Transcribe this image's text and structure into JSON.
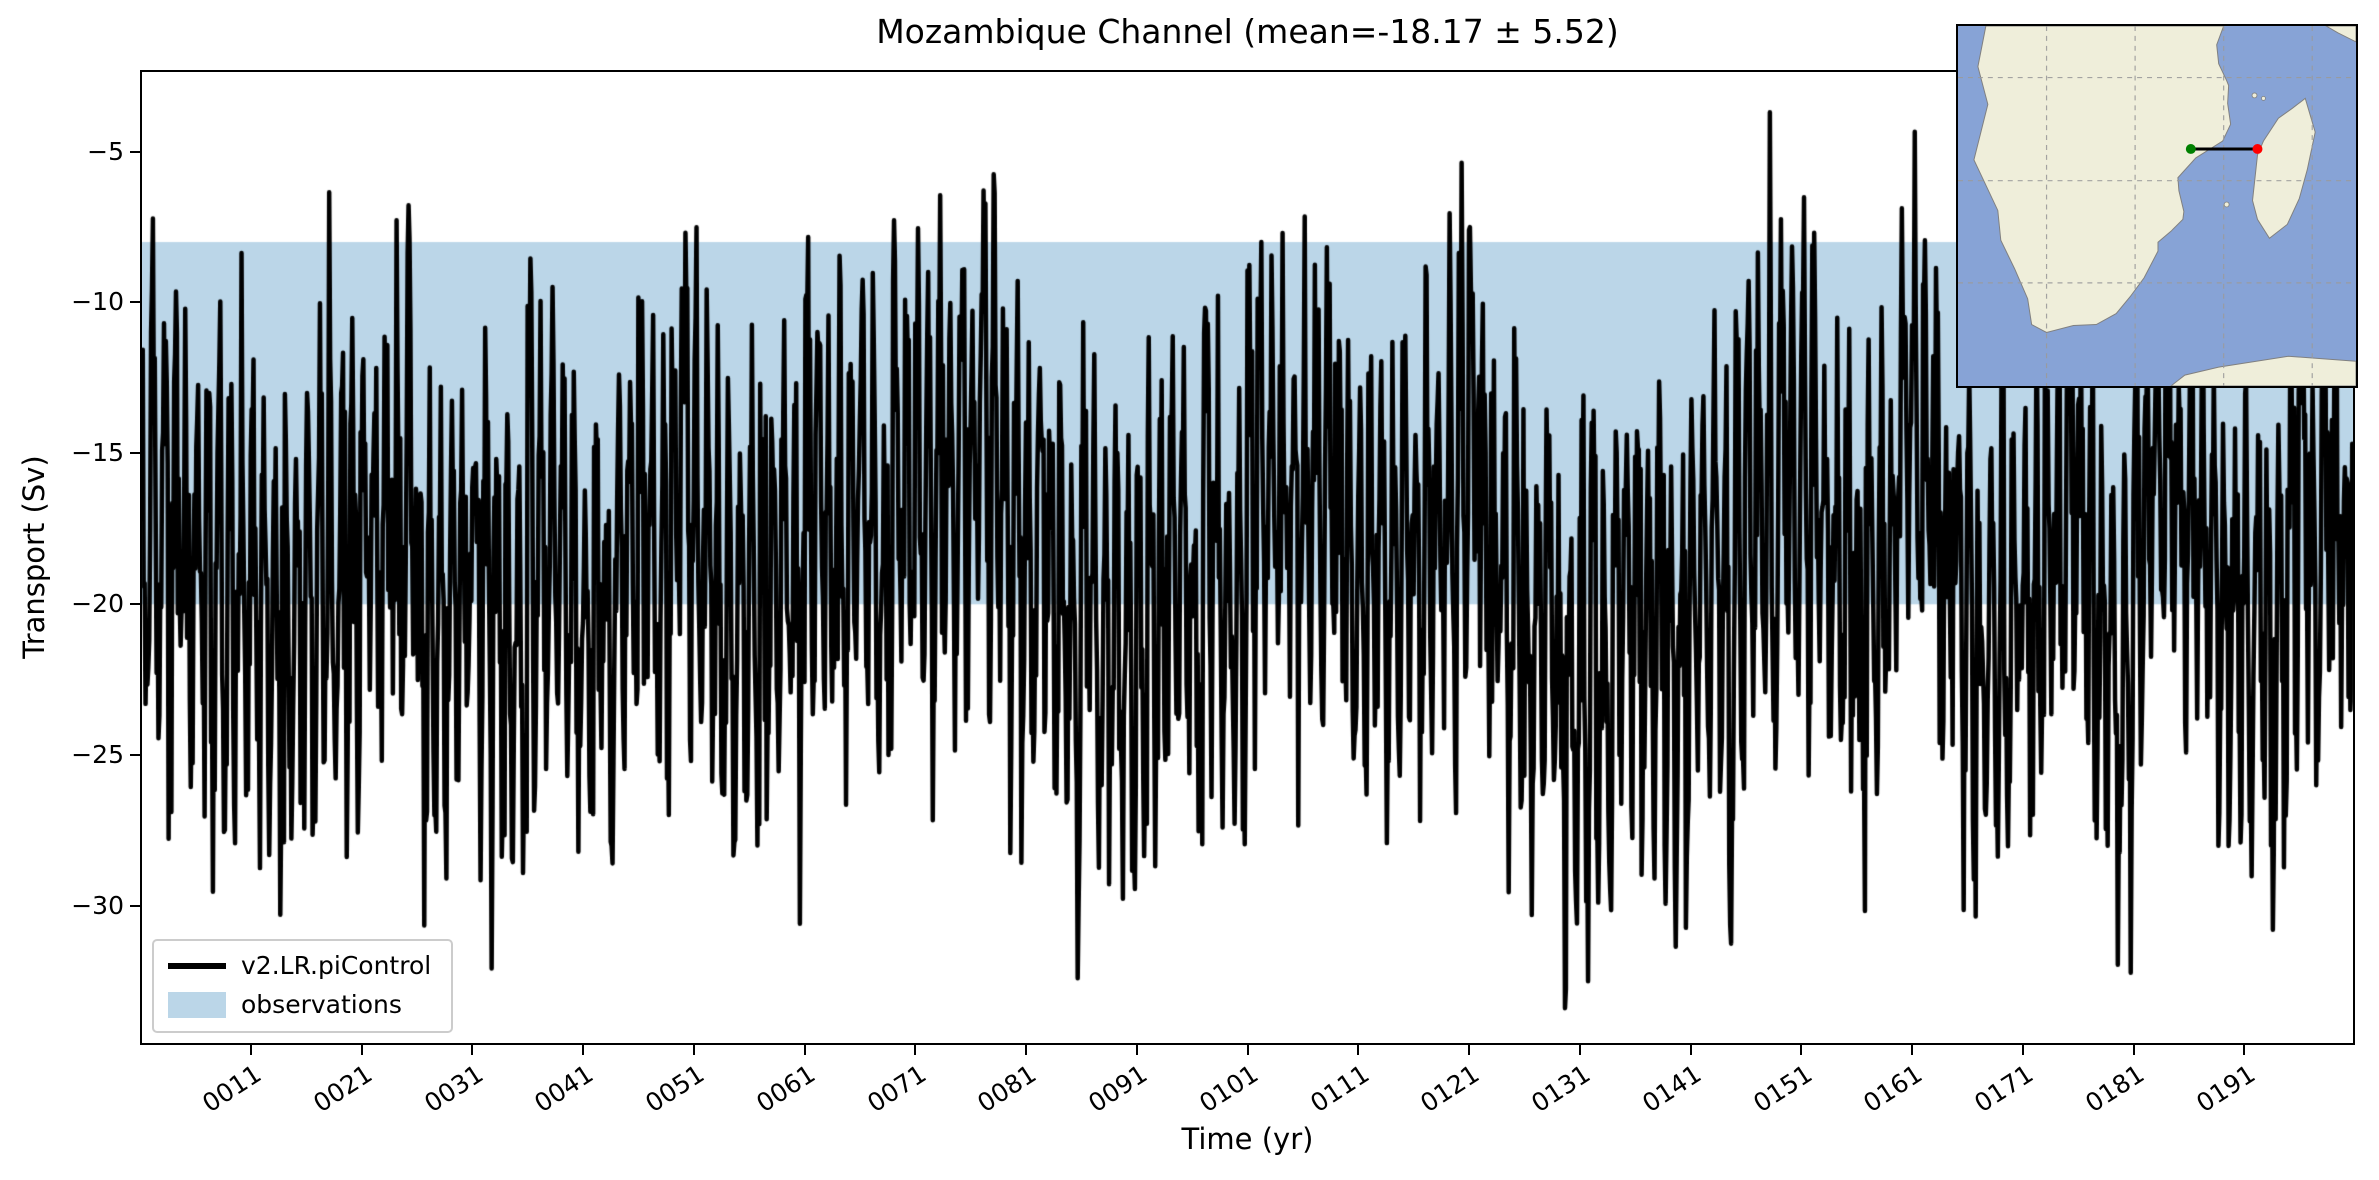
{
  "chart_data": {
    "type": "line",
    "title": "Mozambique Channel (mean=-18.17 ± 5.52)",
    "xlabel": "Time (yr)",
    "ylabel": "Transport (Sv)",
    "xlim": [
      1,
      201
    ],
    "ylim": [
      -34.6,
      -2.3
    ],
    "grid": false,
    "x_ticks": [
      {
        "year": 11,
        "label": "0011"
      },
      {
        "year": 21,
        "label": "0021"
      },
      {
        "year": 31,
        "label": "0031"
      },
      {
        "year": 41,
        "label": "0041"
      },
      {
        "year": 51,
        "label": "0051"
      },
      {
        "year": 61,
        "label": "0061"
      },
      {
        "year": 71,
        "label": "0071"
      },
      {
        "year": 81,
        "label": "0081"
      },
      {
        "year": 91,
        "label": "0091"
      },
      {
        "year": 101,
        "label": "0101"
      },
      {
        "year": 111,
        "label": "0111"
      },
      {
        "year": 121,
        "label": "0121"
      },
      {
        "year": 131,
        "label": "0131"
      },
      {
        "year": 141,
        "label": "0141"
      },
      {
        "year": 151,
        "label": "0151"
      },
      {
        "year": 161,
        "label": "0161"
      },
      {
        "year": 171,
        "label": "0171"
      },
      {
        "year": 181,
        "label": "0181"
      },
      {
        "year": 191,
        "label": "0191"
      }
    ],
    "y_ticks": [
      {
        "value": -5,
        "label": "−5"
      },
      {
        "value": -10,
        "label": "−10"
      },
      {
        "value": -15,
        "label": "−15"
      },
      {
        "value": -20,
        "label": "−20"
      },
      {
        "value": -25,
        "label": "−25"
      },
      {
        "value": -30,
        "label": "−30"
      }
    ],
    "series": [
      {
        "name": "v2.LR.piControl",
        "color": "#000000",
        "linewidth": 4.5,
        "n_years": 200,
        "samples_per_year": 12,
        "mean": -18.17,
        "std": 5.52,
        "approx_min": -33.8,
        "approx_max": -3.7,
        "seed": 7
      }
    ],
    "observations_band": {
      "label": "observations",
      "ymax": -8.0,
      "ymin": -20.0,
      "color": "#1f77b4",
      "alpha": 0.3
    },
    "legend": {
      "position": "lower left",
      "entries": [
        "v2.LR.piControl",
        "observations"
      ]
    }
  },
  "inset_map": {
    "ocean_color": "#87a3d6",
    "land_color": "#efeeda",
    "coast_color": "#808080",
    "grid_color": "#9a9a9a",
    "transect": {
      "line_color": "#000000",
      "start_color": "#008000",
      "end_color": "#ff0000"
    }
  }
}
